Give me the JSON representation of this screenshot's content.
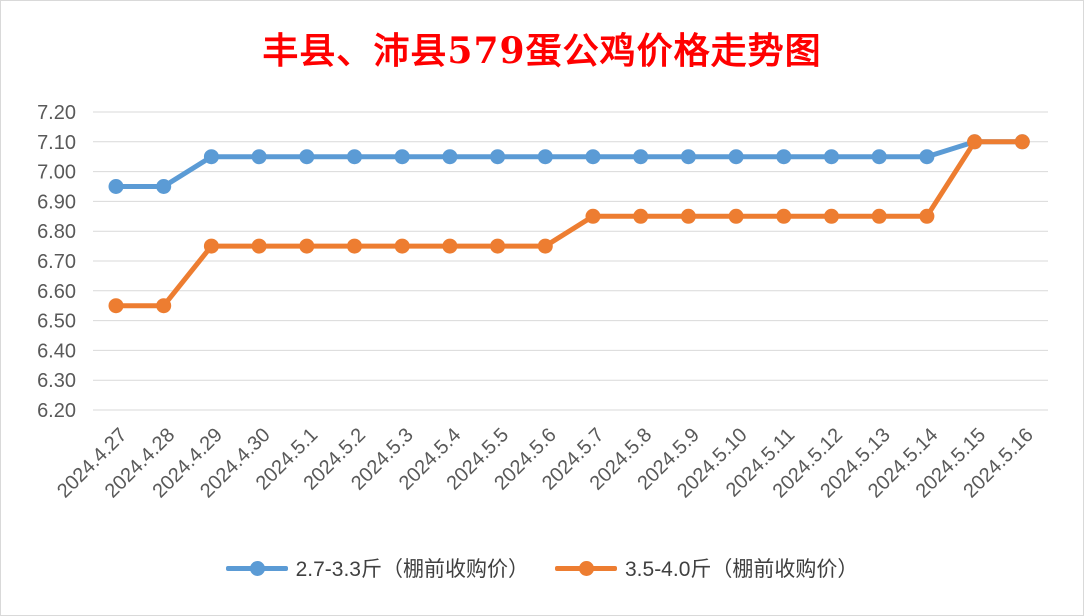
{
  "chart_data": {
    "type": "line",
    "title": "丰县、沛县579蛋公鸡价格走势图",
    "categories": [
      "2024.4.27",
      "2024.4.28",
      "2024.4.29",
      "2024.4.30",
      "2024.5.1",
      "2024.5.2",
      "2024.5.3",
      "2024.5.4",
      "2024.5.5",
      "2024.5.6",
      "2024.5.7",
      "2024.5.8",
      "2024.5.9",
      "2024.5.10",
      "2024.5.11",
      "2024.5.12",
      "2024.5.13",
      "2024.5.14",
      "2024.5.15",
      "2024.5.16"
    ],
    "yticks": [
      "7.20",
      "7.10",
      "7.00",
      "6.90",
      "6.80",
      "6.70",
      "6.60",
      "6.50",
      "6.40",
      "6.30",
      "6.20"
    ],
    "ylim": [
      6.2,
      7.2
    ],
    "grid": true,
    "legend_position": "bottom",
    "series": [
      {
        "name": "2.7-3.3斤（棚前收购价）",
        "color": "#5b9bd5",
        "values": [
          6.95,
          6.95,
          7.05,
          7.05,
          7.05,
          7.05,
          7.05,
          7.05,
          7.05,
          7.05,
          7.05,
          7.05,
          7.05,
          7.05,
          7.05,
          7.05,
          7.05,
          7.05,
          7.1,
          7.1
        ]
      },
      {
        "name": "3.5-4.0斤（棚前收购价）",
        "color": "#ed7d31",
        "values": [
          6.55,
          6.55,
          6.75,
          6.75,
          6.75,
          6.75,
          6.75,
          6.75,
          6.75,
          6.75,
          6.85,
          6.85,
          6.85,
          6.85,
          6.85,
          6.85,
          6.85,
          6.85,
          7.1,
          7.1
        ]
      }
    ]
  }
}
